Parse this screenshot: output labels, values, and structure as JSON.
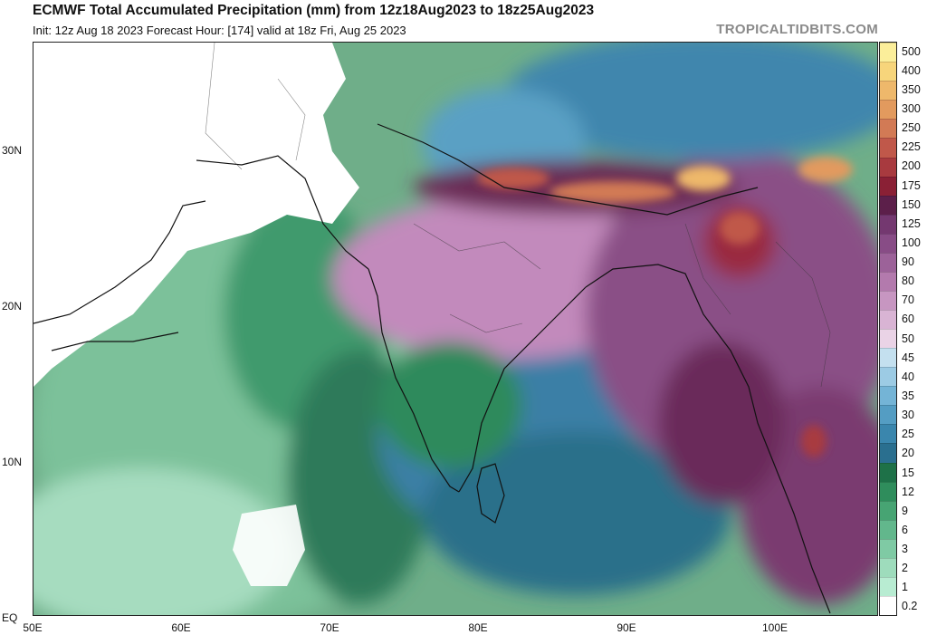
{
  "header": {
    "title": "ECMWF Total Accumulated Precipitation (mm) from 12z18Aug2023 to 18z25Aug2023",
    "subtitle": "Init: 12z Aug 18 2023   Forecast Hour: [174]   valid at 18z Fri, Aug 25 2023",
    "credit": "TROPICALTIDBITS.COM"
  },
  "map": {
    "lat_labels": [
      "30N",
      "20N",
      "10N",
      "EQ"
    ],
    "lon_labels": [
      "50E",
      "60E",
      "70E",
      "80E",
      "90E",
      "100E"
    ],
    "lat_values": [
      30,
      20,
      10,
      0
    ],
    "lon_values": [
      50,
      60,
      70,
      80,
      90,
      100
    ],
    "lon_range": [
      50,
      107
    ],
    "lat_range": [
      0,
      37
    ]
  },
  "colorbar": {
    "labels": [
      "0.2",
      "1",
      "2",
      "3",
      "6",
      "9",
      "12",
      "15",
      "20",
      "25",
      "30",
      "35",
      "40",
      "45",
      "50",
      "60",
      "70",
      "80",
      "90",
      "100",
      "125",
      "150",
      "175",
      "200",
      "225",
      "250",
      "300",
      "350",
      "400",
      "500"
    ],
    "colors": [
      "#ffffff",
      "#b8ecd2",
      "#9edcbc",
      "#7fcaa4",
      "#62b78c",
      "#47a473",
      "#2f8d5c",
      "#1e7148",
      "#2a6f8f",
      "#3a86ad",
      "#549dc3",
      "#74b4d6",
      "#9ccbe4",
      "#c4e0ef",
      "#ead3e6",
      "#d9b4d4",
      "#c796c1",
      "#b37aad",
      "#9c6299",
      "#884c86",
      "#743870",
      "#5c1f4a",
      "#8a2035",
      "#a83a3f",
      "#c0584a",
      "#d27a55",
      "#e29a5e",
      "#eeb86b",
      "#f7d57b",
      "#fbee9a"
    ]
  }
}
